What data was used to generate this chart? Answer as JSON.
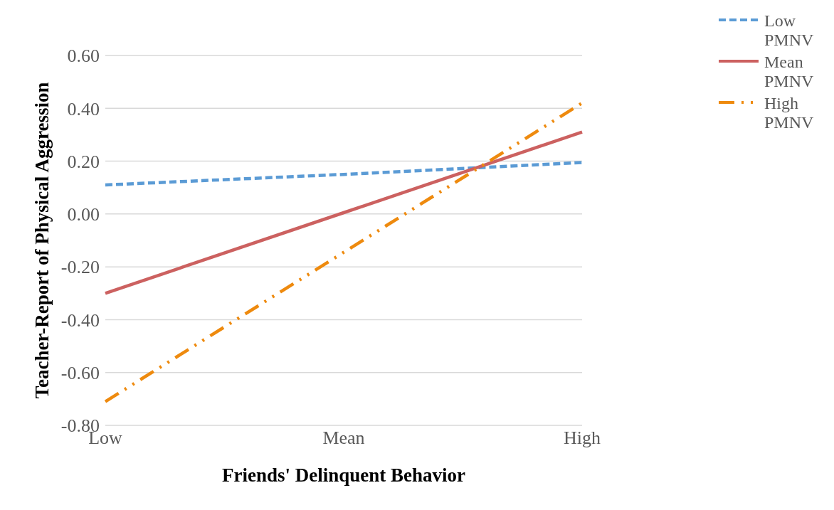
{
  "chart_data": {
    "type": "line",
    "xlabel": "Friends' Delinquent Behavior",
    "ylabel": "Teacher-Report of Physical Aggression",
    "categories": [
      "Low",
      "Mean",
      "High"
    ],
    "series": [
      {
        "name": "Low PMNV",
        "color": "#5b9bd5",
        "line_style": "dashed",
        "values": [
          0.11,
          0.15,
          0.195
        ]
      },
      {
        "name": "Mean PMNV",
        "color": "#cc6160",
        "line_style": "solid",
        "values": [
          -0.3,
          0.005,
          0.31
        ]
      },
      {
        "name": "High PMNV",
        "color": "#ee8a0e",
        "line_style": "dashdot",
        "values": [
          -0.71,
          -0.145,
          0.42
        ]
      }
    ],
    "ylim": [
      -0.8,
      0.6
    ],
    "yticks": [
      {
        "value": -0.8,
        "label": "-0.80"
      },
      {
        "value": -0.6,
        "label": "-0.60"
      },
      {
        "value": -0.4,
        "label": "-0.40"
      },
      {
        "value": -0.2,
        "label": "-0.20"
      },
      {
        "value": 0,
        "label": "0.00"
      },
      {
        "value": 0.2,
        "label": "0.20"
      },
      {
        "value": 0.4,
        "label": "0.40"
      },
      {
        "value": 0.6,
        "label": "0.60"
      }
    ],
    "grid": "y",
    "legend": "top right",
    "marker": "none"
  }
}
